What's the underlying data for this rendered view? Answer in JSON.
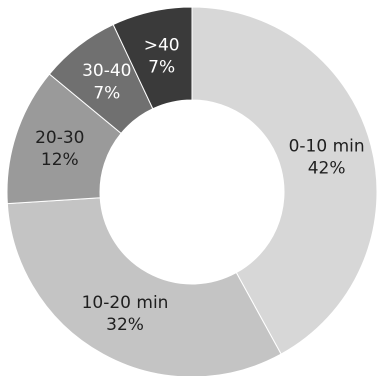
{
  "chart_data": {
    "type": "pie",
    "variant": "donut",
    "title": "",
    "slices": [
      {
        "label": "0-10 min",
        "value": 42,
        "value_label": "42%",
        "color": "#d7d7d7",
        "text_color": "#1f1f1f"
      },
      {
        "label": "10-20 min",
        "value": 32,
        "value_label": "32%",
        "color": "#c4c4c4",
        "text_color": "#1f1f1f"
      },
      {
        "label": "20-30",
        "value": 12,
        "value_label": "12%",
        "color": "#9a9a9a",
        "text_color": "#1f1f1f"
      },
      {
        "label": "30-40",
        "value": 7,
        "value_label": "7%",
        "color": "#707070",
        "text_color": "#ffffff"
      },
      {
        "label": ">40",
        "value": 7,
        "value_label": "7%",
        "color": "#3a3a3a",
        "text_color": "#ffffff"
      }
    ],
    "start_angle": "12 o'clock",
    "direction": "clockwise",
    "legend": "none"
  }
}
